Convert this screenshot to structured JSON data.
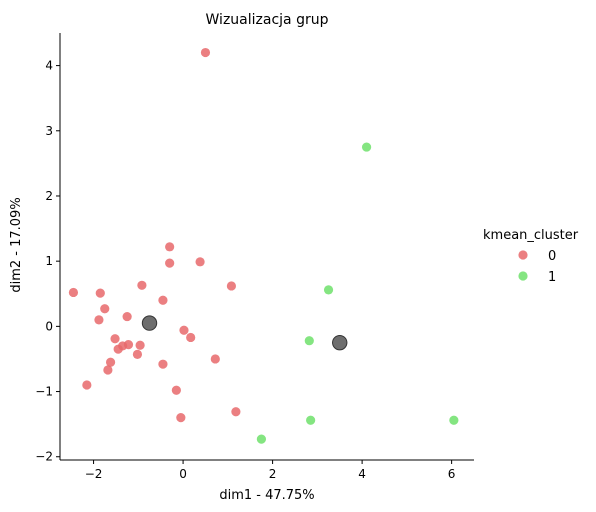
{
  "chart_data": {
    "type": "scatter",
    "title": "Wizualizacja grup",
    "xlabel": "dim1 - 47.75%",
    "ylabel": "dim2 - 17.09%",
    "xlim": [
      -2.75,
      6.5
    ],
    "ylim": [
      -2.05,
      4.5
    ],
    "xticks": [
      -2,
      0,
      2,
      4,
      6
    ],
    "yticks": [
      -2,
      -1,
      0,
      1,
      2,
      3,
      4
    ],
    "xtick_labels": [
      "−2",
      "0",
      "2",
      "4",
      "6"
    ],
    "ytick_labels": [
      "−2",
      "−1",
      "0",
      "1",
      "2",
      "3",
      "4"
    ],
    "grid": false,
    "legend": {
      "title": "kmean_cluster",
      "placement": "right",
      "entries": [
        {
          "label": "0",
          "color": "#e8696b"
        },
        {
          "label": "1",
          "color": "#6fe16b"
        }
      ]
    },
    "series": [
      {
        "name": "0",
        "color": "#e8696b",
        "points": [
          {
            "x": 0.5,
            "y": 4.2
          },
          {
            "x": -0.3,
            "y": 1.22
          },
          {
            "x": -0.3,
            "y": 0.97
          },
          {
            "x": 0.38,
            "y": 0.99
          },
          {
            "x": 1.08,
            "y": 0.62
          },
          {
            "x": -0.92,
            "y": 0.63
          },
          {
            "x": -2.45,
            "y": 0.52
          },
          {
            "x": -1.85,
            "y": 0.51
          },
          {
            "x": -0.45,
            "y": 0.4
          },
          {
            "x": -1.75,
            "y": 0.27
          },
          {
            "x": -1.25,
            "y": 0.15
          },
          {
            "x": -1.88,
            "y": 0.1
          },
          {
            "x": 0.02,
            "y": -0.06
          },
          {
            "x": -1.52,
            "y": -0.19
          },
          {
            "x": 0.17,
            "y": -0.17
          },
          {
            "x": -1.22,
            "y": -0.28
          },
          {
            "x": -0.96,
            "y": -0.29
          },
          {
            "x": -1.35,
            "y": -0.3
          },
          {
            "x": -1.45,
            "y": -0.35
          },
          {
            "x": -1.02,
            "y": -0.43
          },
          {
            "x": 0.72,
            "y": -0.5
          },
          {
            "x": -1.62,
            "y": -0.55
          },
          {
            "x": -0.45,
            "y": -0.58
          },
          {
            "x": -1.68,
            "y": -0.67
          },
          {
            "x": -2.15,
            "y": -0.9
          },
          {
            "x": -0.15,
            "y": -0.98
          },
          {
            "x": 1.18,
            "y": -1.31
          },
          {
            "x": -0.05,
            "y": -1.4
          }
        ]
      },
      {
        "name": "1",
        "color": "#6fe16b",
        "points": [
          {
            "x": 4.1,
            "y": 2.75
          },
          {
            "x": 3.25,
            "y": 0.56
          },
          {
            "x": 2.82,
            "y": -0.22
          },
          {
            "x": 2.85,
            "y": -1.44
          },
          {
            "x": 6.05,
            "y": -1.44
          },
          {
            "x": 1.75,
            "y": -1.73
          }
        ]
      }
    ],
    "centroids": {
      "color": "#555555",
      "points": [
        {
          "x": -0.75,
          "y": 0.05
        },
        {
          "x": 3.5,
          "y": -0.25
        }
      ]
    }
  }
}
